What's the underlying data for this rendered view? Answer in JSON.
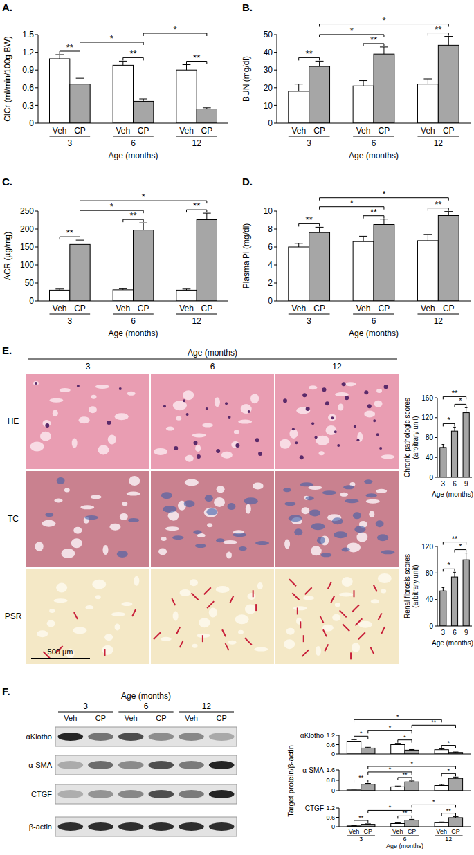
{
  "chart_data": [
    {
      "type": "bar",
      "panel": "A.",
      "y_label": "ClCr (ml/min/100g BW)",
      "x_label": "Age (months)",
      "categories": [
        "3",
        "6",
        "12"
      ],
      "series": [
        {
          "name": "Veh",
          "color": "#ffffff",
          "values": [
            1.09,
            0.98,
            0.9
          ],
          "errors": [
            0.07,
            0.07,
            0.09
          ]
        },
        {
          "name": "CP",
          "color": "#a6a6a6",
          "values": [
            0.66,
            0.37,
            0.24
          ],
          "errors": [
            0.1,
            0.04,
            0.02
          ]
        }
      ],
      "ylim": [
        0,
        1.5
      ],
      "yticks": [
        0,
        0.3,
        0.6,
        0.9,
        1.2,
        1.5
      ],
      "comparisons": [
        {
          "a": [
            0,
            0
          ],
          "b": [
            1,
            0
          ],
          "label": "**"
        },
        {
          "a": [
            0,
            1
          ],
          "b": [
            1,
            1
          ],
          "label": "**"
        },
        {
          "a": [
            0,
            2
          ],
          "b": [
            1,
            2
          ],
          "label": "**"
        },
        {
          "a": [
            1,
            0
          ],
          "b": [
            1,
            1
          ],
          "label": "*"
        },
        {
          "a": [
            1,
            1
          ],
          "b": [
            1,
            2
          ],
          "label": "*"
        }
      ]
    },
    {
      "type": "bar",
      "panel": "B.",
      "y_label": "BUN (mg/dl)",
      "x_label": "Age (months)",
      "categories": [
        "3",
        "6",
        "12"
      ],
      "series": [
        {
          "name": "Veh",
          "color": "#ffffff",
          "values": [
            18,
            21,
            22
          ],
          "errors": [
            4,
            3,
            3
          ]
        },
        {
          "name": "CP",
          "color": "#a6a6a6",
          "values": [
            32,
            39,
            44
          ],
          "errors": [
            3,
            4,
            5
          ]
        }
      ],
      "ylim": [
        0,
        50
      ],
      "yticks": [
        0,
        10,
        20,
        30,
        40,
        50
      ],
      "comparisons": [
        {
          "a": [
            0,
            0
          ],
          "b": [
            1,
            0
          ],
          "label": "**"
        },
        {
          "a": [
            0,
            1
          ],
          "b": [
            1,
            1
          ],
          "label": "**"
        },
        {
          "a": [
            0,
            2
          ],
          "b": [
            1,
            2
          ],
          "label": "**"
        },
        {
          "a": [
            1,
            0
          ],
          "b": [
            1,
            1
          ],
          "label": "*"
        },
        {
          "a": [
            1,
            0
          ],
          "b": [
            1,
            2
          ],
          "label": "*"
        }
      ]
    },
    {
      "type": "bar",
      "panel": "C.",
      "y_label": "ACR (µg/mg)",
      "x_label": "Age (months)",
      "categories": [
        "3",
        "6",
        "12"
      ],
      "series": [
        {
          "name": "Veh",
          "color": "#ffffff",
          "values": [
            30,
            31,
            30
          ],
          "errors": [
            3,
            3,
            3
          ]
        },
        {
          "name": "CP",
          "color": "#a6a6a6",
          "values": [
            157,
            197,
            226
          ],
          "errors": [
            12,
            20,
            18
          ]
        }
      ],
      "ylim": [
        0,
        250
      ],
      "yticks": [
        0,
        50,
        100,
        150,
        200,
        250
      ],
      "comparisons": [
        {
          "a": [
            0,
            0
          ],
          "b": [
            1,
            0
          ],
          "label": "**"
        },
        {
          "a": [
            0,
            1
          ],
          "b": [
            1,
            1
          ],
          "label": "**"
        },
        {
          "a": [
            0,
            2
          ],
          "b": [
            1,
            2
          ],
          "label": "**"
        },
        {
          "a": [
            1,
            0
          ],
          "b": [
            1,
            1
          ],
          "label": "*"
        },
        {
          "a": [
            1,
            0
          ],
          "b": [
            1,
            2
          ],
          "label": "*"
        }
      ]
    },
    {
      "type": "bar",
      "panel": "D.",
      "y_label": "Plasma Pi (mg/dl)",
      "x_label": "Age (months)",
      "categories": [
        "3",
        "6",
        "12"
      ],
      "series": [
        {
          "name": "Veh",
          "color": "#ffffff",
          "values": [
            6.0,
            6.6,
            6.7
          ],
          "errors": [
            0.4,
            0.6,
            0.7
          ]
        },
        {
          "name": "CP",
          "color": "#a6a6a6",
          "values": [
            7.6,
            8.5,
            9.5
          ],
          "errors": [
            0.6,
            0.6,
            0.45
          ]
        }
      ],
      "ylim": [
        0,
        10
      ],
      "yticks": [
        0,
        2,
        4,
        6,
        8,
        10
      ],
      "comparisons": [
        {
          "a": [
            0,
            0
          ],
          "b": [
            1,
            0
          ],
          "label": "**"
        },
        {
          "a": [
            0,
            1
          ],
          "b": [
            1,
            1
          ],
          "label": "**"
        },
        {
          "a": [
            0,
            2
          ],
          "b": [
            1,
            2
          ],
          "label": "**"
        },
        {
          "a": [
            1,
            0
          ],
          "b": [
            1,
            1
          ],
          "label": "*"
        },
        {
          "a": [
            1,
            0
          ],
          "b": [
            1,
            2
          ],
          "label": "*"
        }
      ]
    },
    {
      "type": "bar",
      "y_label": [
        "Chronic pathologic scores",
        "(arbitrary unit)"
      ],
      "x_label": "Age (months)",
      "categories": [
        "3",
        "6",
        "9"
      ],
      "values": [
        60,
        93,
        130
      ],
      "errors": [
        6,
        8,
        10
      ],
      "color": "#a6a6a6",
      "ylim": [
        0,
        160
      ],
      "yticks": [
        0,
        40,
        80,
        120,
        160
      ],
      "comparisons": [
        {
          "a": 0,
          "b": 1,
          "label": "*"
        },
        {
          "a": 1,
          "b": 2,
          "label": "*"
        },
        {
          "a": 0,
          "b": 2,
          "label": "**"
        }
      ]
    },
    {
      "type": "bar",
      "y_label": [
        "Renal fibrosis scores",
        "(arbitrary unit)"
      ],
      "x_label": "Age (months)",
      "categories": [
        "3",
        "6",
        "9"
      ],
      "values": [
        53,
        74,
        100
      ],
      "errors": [
        5,
        7,
        10
      ],
      "color": "#a6a6a6",
      "ylim": [
        0,
        120
      ],
      "yticks": [
        0,
        40,
        80,
        120
      ],
      "comparisons": [
        {
          "a": 0,
          "b": 1,
          "label": "*"
        },
        {
          "a": 1,
          "b": 2,
          "label": "*"
        },
        {
          "a": 0,
          "b": 2,
          "label": "**"
        }
      ]
    },
    {
      "type": "bar",
      "title": "αKlotho",
      "tick_labels": "y",
      "categories": [
        "3",
        "6",
        "12"
      ],
      "series": [
        {
          "color": "#ffffff",
          "values": [
            0.82,
            0.6,
            0.28
          ],
          "errors": [
            0.1,
            0.08,
            0.05
          ]
        },
        {
          "color": "#a6a6a6",
          "values": [
            0.38,
            0.25,
            0.1
          ],
          "errors": [
            0.05,
            0.04,
            0.03
          ]
        }
      ],
      "ylim": [
        0,
        1.2
      ],
      "yticks": [
        0,
        0.6,
        1.2
      ],
      "comparisons": [
        {
          "a": [
            0,
            0
          ],
          "b": [
            1,
            0
          ],
          "label": "*"
        },
        {
          "a": [
            0,
            1
          ],
          "b": [
            1,
            1
          ],
          "label": "*"
        },
        {
          "a": [
            0,
            2
          ],
          "b": [
            1,
            2
          ],
          "label": "*"
        },
        {
          "a": [
            1,
            0
          ],
          "b": [
            1,
            1
          ],
          "label": "*"
        },
        {
          "a": [
            1,
            1
          ],
          "b": [
            1,
            2
          ],
          "label": "**"
        },
        {
          "a": [
            0,
            0
          ],
          "b": [
            0,
            2
          ],
          "label": "*"
        }
      ]
    },
    {
      "type": "bar",
      "title": "α-SMA",
      "tick_labels": "y",
      "categories": [
        "3",
        "6",
        "12"
      ],
      "series": [
        {
          "color": "#ffffff",
          "values": [
            0.1,
            0.3,
            0.4
          ],
          "errors": [
            0.02,
            0.06,
            0.08
          ]
        },
        {
          "color": "#a6a6a6",
          "values": [
            0.5,
            0.68,
            0.95
          ],
          "errors": [
            0.06,
            0.07,
            0.1
          ]
        }
      ],
      "ylim": [
        0,
        1.6
      ],
      "yticks": [
        0,
        0.8,
        1.6
      ],
      "comparisons": [
        {
          "a": [
            0,
            0
          ],
          "b": [
            1,
            0
          ],
          "label": "**"
        },
        {
          "a": [
            0,
            1
          ],
          "b": [
            1,
            1
          ],
          "label": "**"
        },
        {
          "a": [
            0,
            2
          ],
          "b": [
            1,
            2
          ],
          "label": "*"
        },
        {
          "a": [
            1,
            0
          ],
          "b": [
            1,
            1
          ],
          "label": "*"
        },
        {
          "a": [
            1,
            0
          ],
          "b": [
            1,
            2
          ],
          "label": "*"
        }
      ]
    },
    {
      "type": "bar",
      "title": "CTGF",
      "x_label": "Age (months)",
      "categories": [
        "3",
        "6",
        "12"
      ],
      "series": [
        {
          "name": "Veh",
          "color": "#ffffff",
          "values": [
            0.05,
            0.2,
            0.25
          ],
          "errors": [
            0.01,
            0.04,
            0.05
          ]
        },
        {
          "name": "CP",
          "color": "#a6a6a6",
          "values": [
            0.15,
            0.42,
            0.58
          ],
          "errors": [
            0.03,
            0.05,
            0.06
          ]
        }
      ],
      "ylim": [
        0,
        1.2
      ],
      "yticks": [
        0,
        0.6,
        1.2
      ],
      "comparisons": [
        {
          "a": [
            0,
            0
          ],
          "b": [
            1,
            0
          ],
          "label": "**"
        },
        {
          "a": [
            0,
            1
          ],
          "b": [
            1,
            1
          ],
          "label": "**"
        },
        {
          "a": [
            0,
            2
          ],
          "b": [
            1,
            2
          ],
          "label": "**"
        },
        {
          "a": [
            1,
            0
          ],
          "b": [
            1,
            1
          ],
          "label": "*"
        },
        {
          "a": [
            1,
            1
          ],
          "b": [
            1,
            2
          ],
          "label": "*"
        }
      ]
    }
  ],
  "histology": {
    "panel": "E.",
    "x_label": "Age (months)",
    "columns": [
      "3",
      "6",
      "12"
    ],
    "rows": [
      "HE",
      "TC",
      "PSR"
    ],
    "scale_bar": "500 µm"
  },
  "blot": {
    "panel": "F.",
    "x_label": "Age (months)",
    "ages": [
      "3",
      "6",
      "12"
    ],
    "lanes": [
      "Veh",
      "CP"
    ],
    "rows": [
      "αKlotho",
      "α-SMA",
      "CTGF",
      "β-actin"
    ],
    "chart_y_label": "Target protein/β-actin"
  }
}
